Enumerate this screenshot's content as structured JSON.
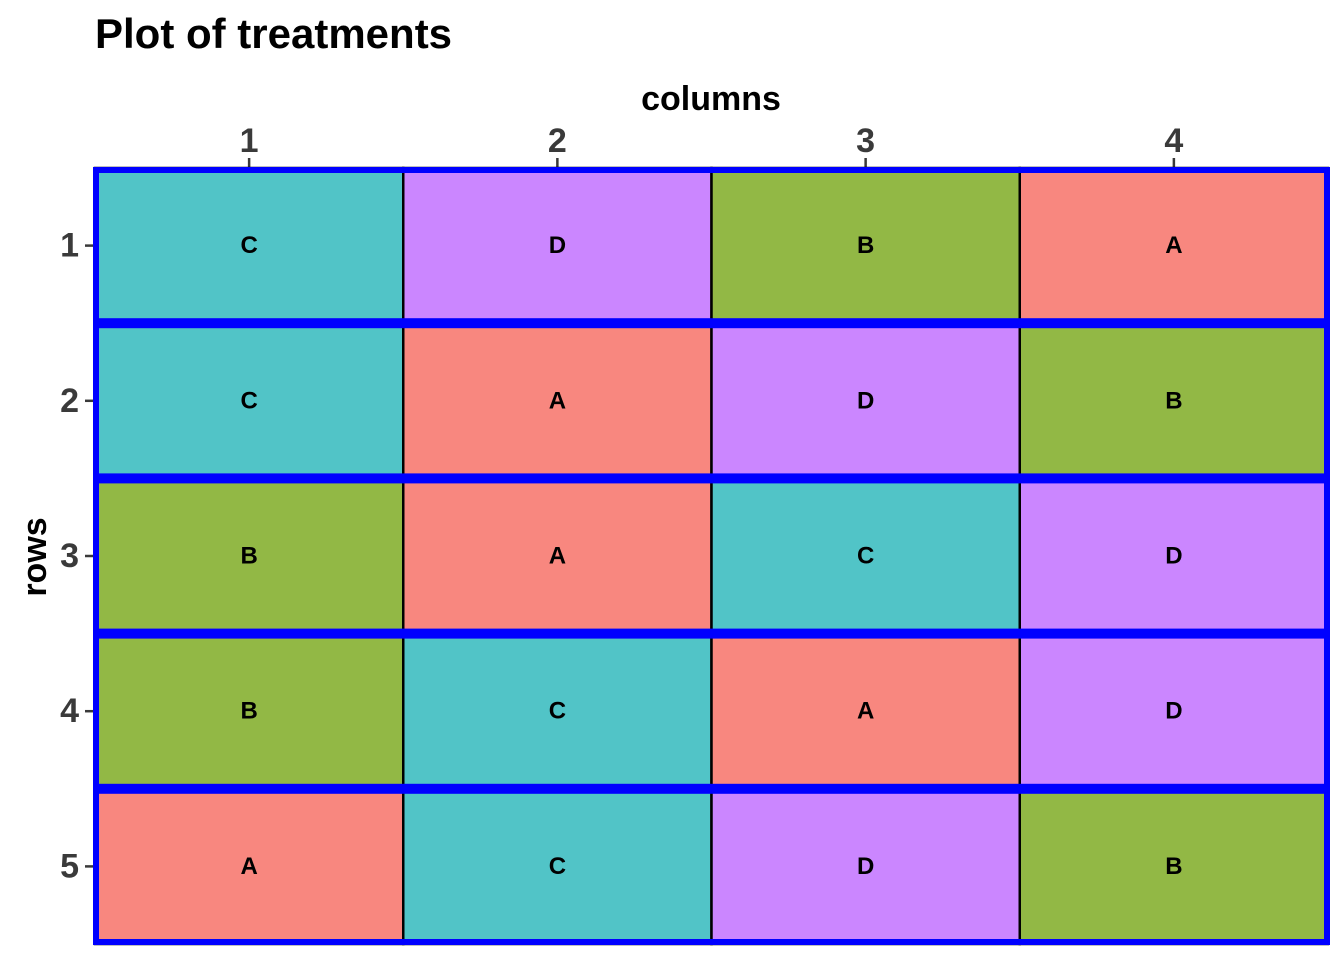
{
  "chart_data": {
    "type": "heatmap",
    "title": "Plot of treatments",
    "xlabel": "columns",
    "ylabel": "rows",
    "x_position": "top",
    "columns": [
      "1",
      "2",
      "3",
      "4"
    ],
    "rows": [
      "1",
      "2",
      "3",
      "4",
      "5"
    ],
    "cells": [
      [
        "C",
        "D",
        "B",
        "A"
      ],
      [
        "C",
        "A",
        "D",
        "B"
      ],
      [
        "B",
        "A",
        "C",
        "D"
      ],
      [
        "B",
        "C",
        "A",
        "D"
      ],
      [
        "A",
        "C",
        "D",
        "B"
      ]
    ],
    "treatment_colors": {
      "A": "#F8877F",
      "B": "#92B845",
      "C": "#51C4C7",
      "D": "#CB86FF"
    },
    "cell_border_color": "#000000",
    "row_block_border_color": "#0000FF",
    "grid": false,
    "legend": "none"
  }
}
